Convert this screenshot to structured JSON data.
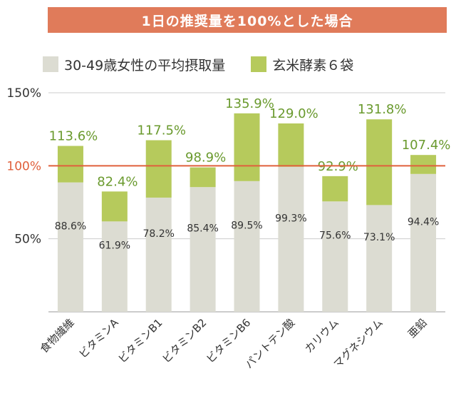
{
  "header": {
    "title": "1日の推奨量を100%とした場合"
  },
  "colors": {
    "base": "#dcdcd2",
    "supplement": "#b6ca5c",
    "reference": "#e0603c",
    "banner": "#e07b5a",
    "total_text": "#6a9a2e"
  },
  "chart_data": {
    "type": "bar",
    "stacked": true,
    "categories": [
      "食物繊維",
      "ビタミンA",
      "ビタミンB1",
      "ビタミンB2",
      "ビタミンB6",
      "パントテン酸",
      "カリウム",
      "マグネシウム",
      "亜鉛"
    ],
    "series": [
      {
        "name": "30-49歳女性の平均摂取量",
        "values": [
          88.6,
          61.9,
          78.2,
          85.4,
          89.5,
          99.3,
          75.6,
          73.1,
          94.4
        ]
      },
      {
        "name": "玄米酵素６袋",
        "values": [
          25.0,
          20.5,
          39.3,
          13.5,
          46.4,
          29.7,
          17.3,
          58.7,
          13.0
        ]
      }
    ],
    "base_labels": [
      "88.6%",
      "61.9%",
      "78.2%",
      "85.4%",
      "89.5%",
      "99.3%",
      "75.6%",
      "73.1%",
      "94.4%"
    ],
    "totals": [
      113.6,
      82.4,
      117.5,
      98.9,
      135.9,
      129.0,
      92.9,
      131.8,
      107.4
    ],
    "total_labels": [
      "113.6%",
      "82.4%",
      "117.5%",
      "98.9%",
      "135.9%",
      "129.0%",
      "92.9%",
      "131.8%",
      "107.4%"
    ],
    "y_ticks": [
      {
        "value": 50,
        "label": "50%"
      },
      {
        "value": 100,
        "label": "100%"
      },
      {
        "value": 150,
        "label": "150%"
      }
    ],
    "reference_line": 100,
    "ylim": [
      0,
      150
    ],
    "legend_position": "top"
  }
}
